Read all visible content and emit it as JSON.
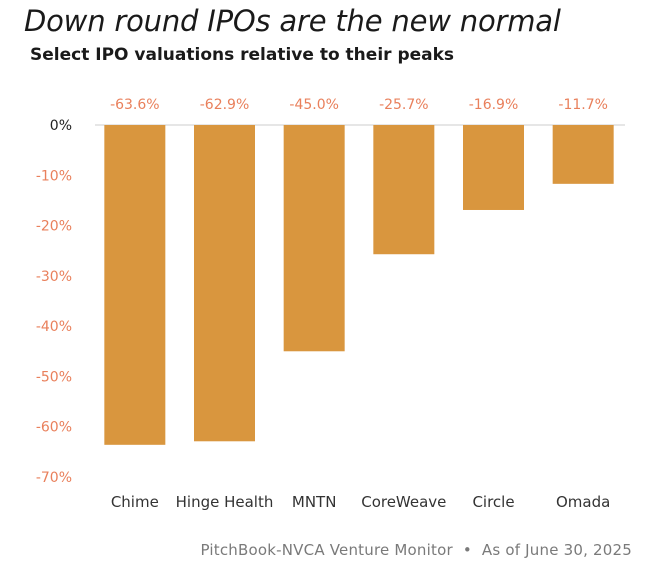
{
  "title": "Down round IPOs are the new normal",
  "subtitle": "Select IPO valuations relative to their peaks",
  "source": {
    "left": "PitchBook-NVCA Venture Monitor",
    "separator": "•",
    "right": "As of June 30, 2025"
  },
  "colors": {
    "bar": "#D9963E",
    "negative_text": "#E9805C",
    "zero_text": "#222222",
    "axis_line": "#cccccc"
  },
  "chart_data": {
    "type": "bar",
    "title": "Down round IPOs are the new normal",
    "subtitle": "Select IPO valuations relative to their peaks",
    "categories": [
      "Chime",
      "Hinge Health",
      "MNTN",
      "CoreWeave",
      "Circle",
      "Omada"
    ],
    "values": [
      -63.6,
      -62.9,
      -45.0,
      -25.7,
      -16.9,
      -11.7
    ],
    "data_labels": [
      "-63.6%",
      "-62.9%",
      "-45.0%",
      "-25.7%",
      "-16.9%",
      "-11.7%"
    ],
    "ylim": [
      -70,
      0
    ],
    "yticks": [
      0,
      -10,
      -20,
      -30,
      -40,
      -50,
      -60,
      -70
    ],
    "ytick_labels": [
      "0%",
      "-10%",
      "-20%",
      "-30%",
      "-40%",
      "-50%",
      "-60%",
      "-70%"
    ],
    "xlabel": "",
    "ylabel": "",
    "grid": false,
    "legend": "none"
  }
}
